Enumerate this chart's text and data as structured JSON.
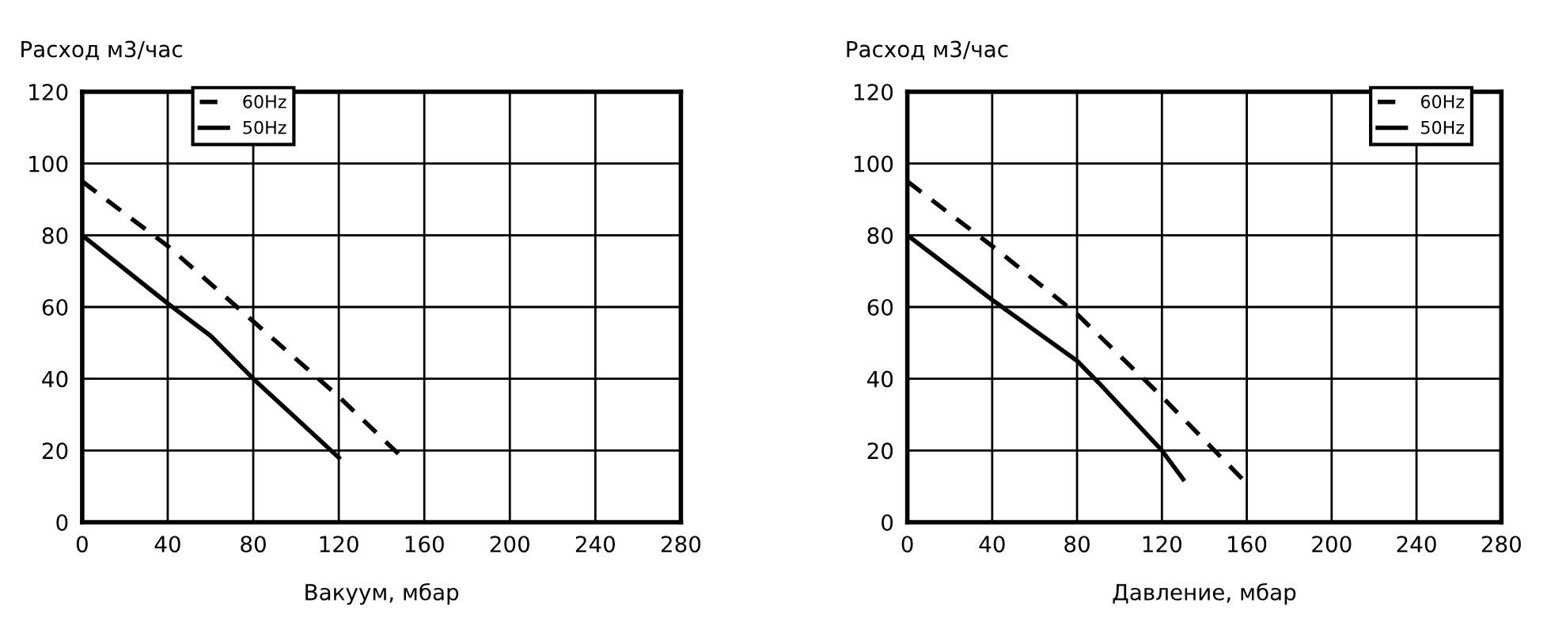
{
  "chart_data": [
    {
      "type": "line",
      "ylabel": "Расход м3/час",
      "xlabel": "Вакуум, мбар",
      "xlim": [
        0,
        280
      ],
      "xticks": [
        0,
        40,
        80,
        120,
        160,
        200,
        240,
        280
      ],
      "ylim": [
        0,
        120
      ],
      "yticks": [
        0,
        20,
        40,
        60,
        80,
        100,
        120
      ],
      "grid": true,
      "legend": "top left",
      "series": [
        {
          "name": "60Hz",
          "color": "#000000",
          "line_style": "dashed",
          "x": [
            0,
            40,
            80,
            120,
            148
          ],
          "values": [
            95,
            77,
            56,
            35,
            19
          ]
        },
        {
          "name": "50Hz",
          "color": "#000000",
          "line_style": "solid",
          "x": [
            0,
            40,
            60,
            80,
            120
          ],
          "values": [
            80,
            61,
            52,
            40,
            18
          ]
        }
      ]
    },
    {
      "type": "line",
      "ylabel": "Расход м3/час",
      "xlabel": "Давление, мбар",
      "xlim": [
        0,
        280
      ],
      "xticks": [
        0,
        40,
        80,
        120,
        160,
        200,
        240,
        280
      ],
      "ylim": [
        0,
        120
      ],
      "yticks": [
        0,
        20,
        40,
        60,
        80,
        100,
        120
      ],
      "grid": true,
      "legend": "top right",
      "series": [
        {
          "name": "60Hz",
          "color": "#000000",
          "line_style": "dashed",
          "x": [
            0,
            40,
            80,
            120,
            158
          ],
          "values": [
            95,
            77,
            58,
            35,
            12
          ]
        },
        {
          "name": "50Hz",
          "color": "#000000",
          "line_style": "solid",
          "x": [
            0,
            40,
            80,
            90,
            120,
            130
          ],
          "values": [
            80,
            62,
            45,
            39,
            20,
            12
          ]
        }
      ]
    }
  ]
}
